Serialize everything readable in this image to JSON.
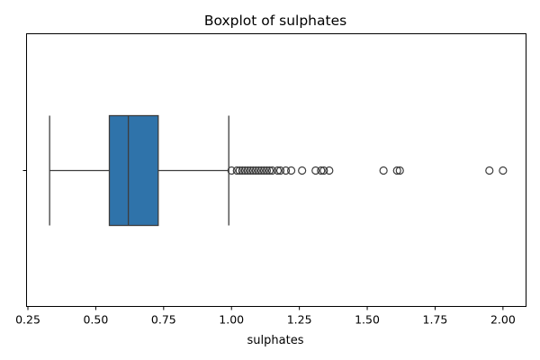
{
  "chart_data": {
    "type": "boxplot",
    "title": "Boxplot of sulphates",
    "xlabel": "sulphates",
    "ylabel": "",
    "orientation": "horizontal",
    "xlim": [
      0.245,
      2.085
    ],
    "xticks": [
      0.25,
      0.5,
      0.75,
      1.0,
      1.25,
      1.5,
      1.75,
      2.0
    ],
    "xtick_labels": [
      "0.25",
      "0.50",
      "0.75",
      "1.00",
      "1.25",
      "1.50",
      "1.75",
      "2.00"
    ],
    "ytick_labels": [
      ""
    ],
    "grid": false,
    "box_color": "#2f73aa",
    "line_color": "#3d3d3d",
    "stats": {
      "whislo": 0.33,
      "q1": 0.55,
      "median": 0.62,
      "q3": 0.73,
      "whishi": 0.99
    },
    "fliers": [
      1.0,
      1.02,
      1.03,
      1.04,
      1.05,
      1.06,
      1.07,
      1.08,
      1.09,
      1.1,
      1.11,
      1.12,
      1.13,
      1.14,
      1.15,
      1.17,
      1.18,
      1.2,
      1.22,
      1.26,
      1.31,
      1.33,
      1.34,
      1.36,
      1.56,
      1.61,
      1.62,
      1.95,
      2.0
    ]
  }
}
